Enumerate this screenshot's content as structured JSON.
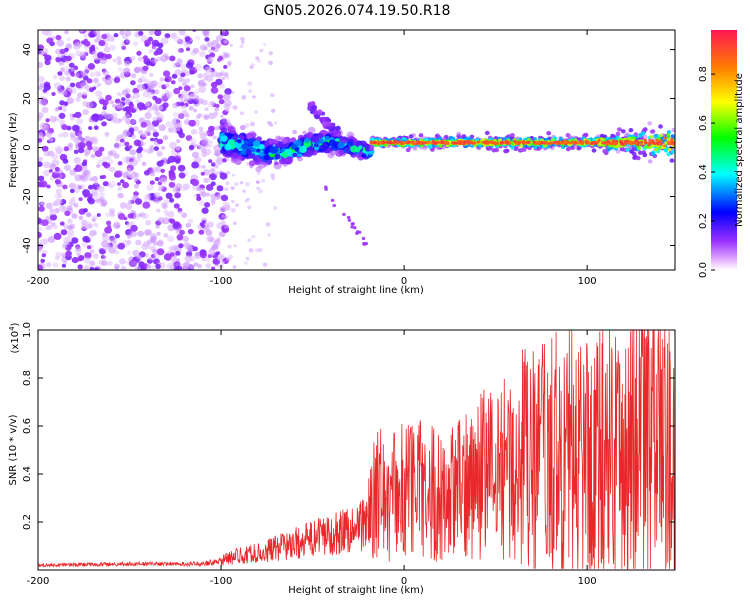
{
  "title": "GN05.2026.074.19.50.R18",
  "colors": {
    "trace": "#e8282a",
    "spectral_low": "#9b30ff",
    "spectral_high": "#ff1654"
  },
  "chart_data": [
    {
      "type": "heatmap",
      "title": "",
      "xlabel": "Height of straight line (km)",
      "ylabel": "Frequency (Hz)",
      "xlim": [
        -200,
        148
      ],
      "ylim": [
        -50,
        48
      ],
      "xticks": [
        -200,
        -100,
        0,
        100
      ],
      "yticks": [
        -40,
        -20,
        0,
        20,
        40
      ],
      "colorbar": {
        "label": "Normalized spectral amplitude",
        "range": [
          0,
          0.98
        ],
        "ticks": [
          "0.0",
          "0.2",
          "0.4",
          "0.6",
          "0.8"
        ],
        "colormap": [
          "#ffffff",
          "#9b30ff",
          "#0000ff",
          "#00ffff",
          "#00ff00",
          "#ffff00",
          "#ff8000",
          "#ff1654"
        ]
      },
      "features": [
        {
          "name": "noise-region",
          "x_range": [
            -200,
            -100
          ],
          "freq_range": [
            -50,
            48
          ],
          "amplitude": 0.15
        },
        {
          "name": "scatter-region",
          "x_range": [
            -100,
            -18
          ],
          "freq_center": 0,
          "freq_spread": 8,
          "amplitude": 0.4
        },
        {
          "name": "signal-band",
          "x_range": [
            -18,
            148
          ],
          "freq_center": 2,
          "freq_spread": 2,
          "amplitude": 0.95
        },
        {
          "name": "chirp-streak",
          "x_range": [
            -52,
            -35
          ],
          "freq_range": [
            18,
            5
          ],
          "amplitude": 0.25
        }
      ]
    },
    {
      "type": "line",
      "title": "",
      "xlabel": "Height of straight line (km)",
      "ylabel": "SNR (10 * v/v)",
      "multiplier": "(x10",
      "multiplier_exp": "4",
      "multiplier_close": ")",
      "xlim": [
        -200,
        148
      ],
      "ylim": [
        0,
        1.0
      ],
      "xticks": [
        -200,
        -100,
        0,
        100
      ],
      "yticks": [
        "0.2",
        "0.4",
        "0.6",
        "0.8",
        "1.0"
      ],
      "series": [
        {
          "name": "SNR",
          "x": [
            -200,
            -150,
            -110,
            -100,
            -90,
            -80,
            -70,
            -60,
            -50,
            -40,
            -30,
            -20,
            -15,
            -10,
            0,
            10,
            20,
            30,
            40,
            50,
            60,
            70,
            80,
            90,
            100,
            110,
            120,
            130,
            140,
            148
          ],
          "values": [
            0.02,
            0.025,
            0.025,
            0.04,
            0.06,
            0.07,
            0.09,
            0.11,
            0.13,
            0.15,
            0.17,
            0.2,
            0.32,
            0.3,
            0.33,
            0.35,
            0.3,
            0.33,
            0.4,
            0.42,
            0.44,
            0.43,
            0.45,
            0.48,
            0.47,
            0.5,
            0.52,
            0.56,
            0.5,
            0.45
          ]
        }
      ]
    }
  ]
}
